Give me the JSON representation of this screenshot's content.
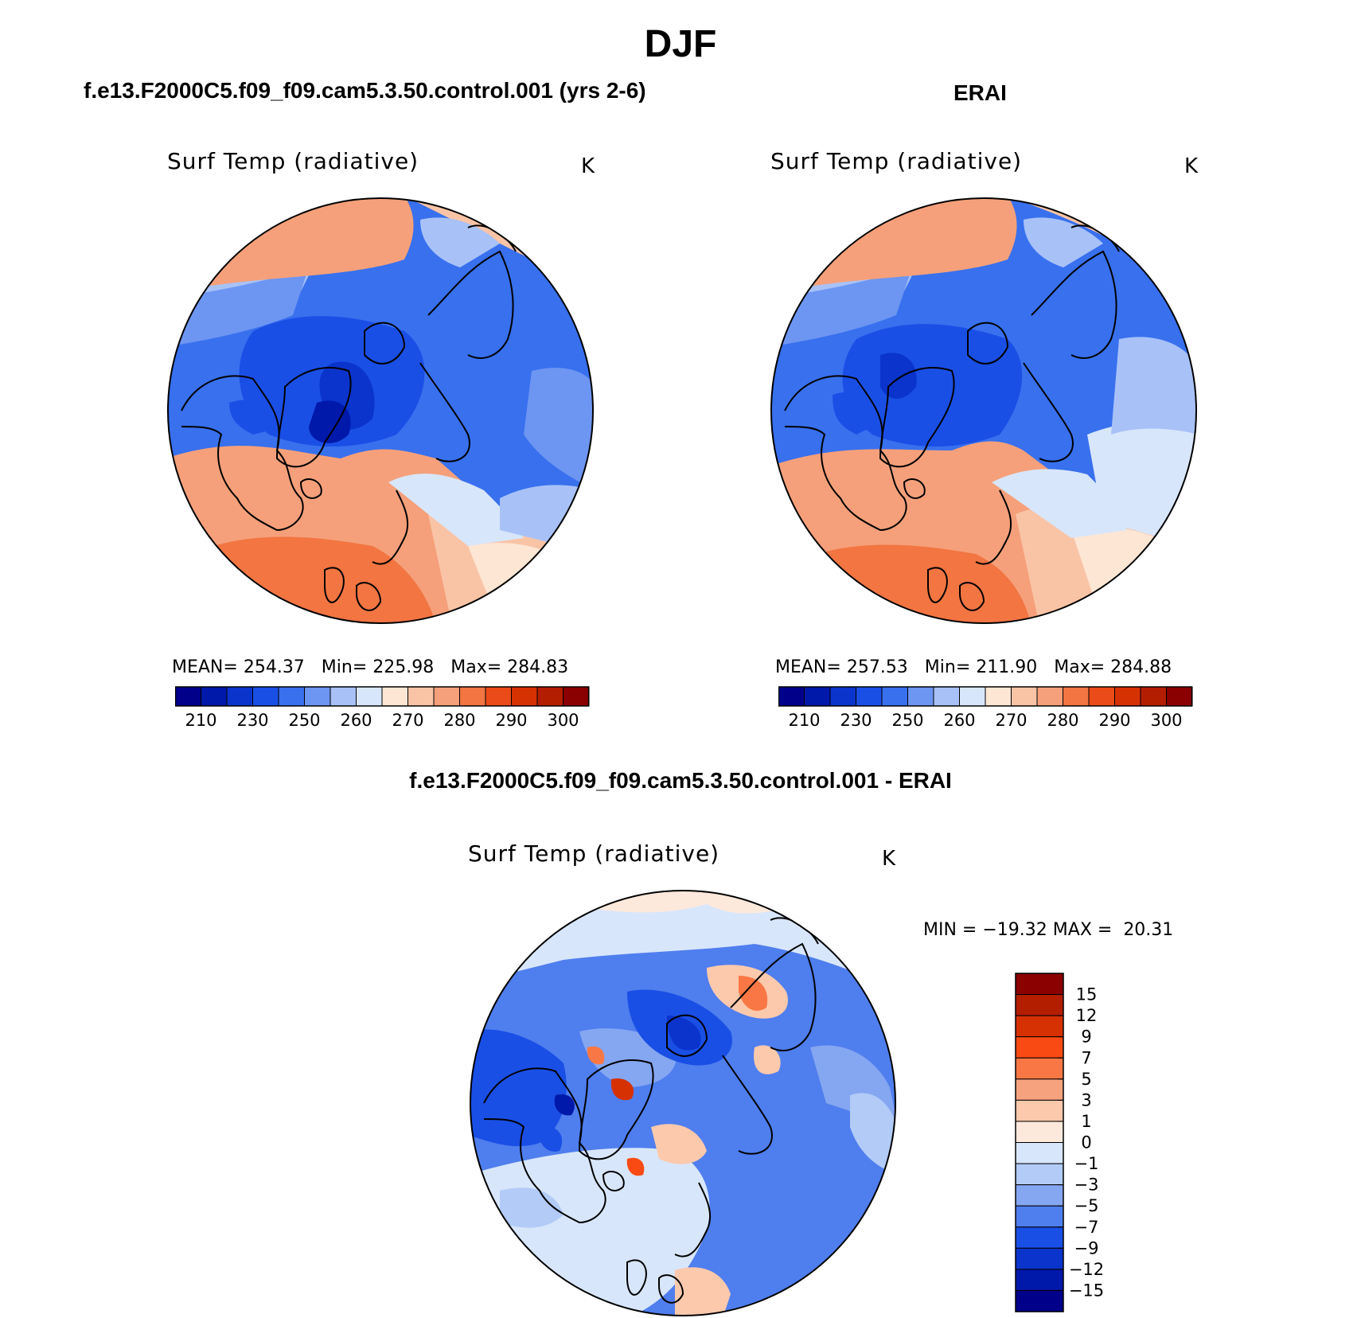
{
  "figure": {
    "title": "DJF",
    "left_case": "f.e13.F2000C5.f09_f09.cam5.3.50.control.001 (yrs 2-6)",
    "right_case": "ERAI",
    "diff_case": "f.e13.F2000C5.f09_f09.cam5.3.50.control.001 - ERAI"
  },
  "chart_data": [
    {
      "type": "heatmap",
      "projection": "north polar stereographic",
      "title": "Surf Temp (radiative)",
      "units": "K",
      "stats": {
        "mean_label": "MEAN=",
        "mean": "254.37",
        "min_label": "Min=",
        "min": "225.98",
        "max_label": "Max=",
        "max": "284.83"
      },
      "colorbar": {
        "orientation": "horizontal",
        "levels": [
          "210",
          "230",
          "250",
          "260",
          "270",
          "280",
          "290",
          "300"
        ],
        "colors": [
          "#00008b",
          "#0019aa",
          "#0a34cc",
          "#1a4fe6",
          "#3870ee",
          "#6d95f2",
          "#a8c2f7",
          "#d8e6fb",
          "#fde6d4",
          "#f9c4a6",
          "#f5a07a",
          "#f27542",
          "#eb4b18",
          "#d63103",
          "#b41e00",
          "#8b0000"
        ]
      }
    },
    {
      "type": "heatmap",
      "projection": "north polar stereographic",
      "title": "Surf Temp (radiative)",
      "units": "K",
      "stats": {
        "mean_label": "MEAN=",
        "mean": "257.53",
        "min_label": "Min=",
        "min": "211.90",
        "max_label": "Max=",
        "max": "284.88"
      },
      "colorbar": {
        "orientation": "horizontal",
        "levels": [
          "210",
          "230",
          "250",
          "260",
          "270",
          "280",
          "290",
          "300"
        ],
        "colors": [
          "#00008b",
          "#0019aa",
          "#0a34cc",
          "#1a4fe6",
          "#3870ee",
          "#6d95f2",
          "#a8c2f7",
          "#d8e6fb",
          "#fde6d4",
          "#f9c4a6",
          "#f5a07a",
          "#f27542",
          "#eb4b18",
          "#d63103",
          "#b41e00",
          "#8b0000"
        ]
      }
    },
    {
      "type": "heatmap",
      "projection": "north polar stereographic",
      "title": "Surf Temp (radiative)",
      "units": "K",
      "stats": {
        "min_label": "MIN =",
        "min": "−19.32",
        "max_label": "MAX =",
        "max": "20.31"
      },
      "colorbar": {
        "orientation": "vertical",
        "levels": [
          "15",
          "12",
          "9",
          "7",
          "5",
          "3",
          "1",
          "0",
          "−1",
          "−3",
          "−5",
          "−7",
          "−9",
          "−12",
          "−15"
        ],
        "colors": [
          "#8b0000",
          "#b41e00",
          "#d63103",
          "#fa4a14",
          "#f97744",
          "#f7a27f",
          "#fcc9ad",
          "#fde9dc",
          "#d8e6fb",
          "#b2cbf7",
          "#85a6f1",
          "#4f7eee",
          "#1a4fe6",
          "#0a34cc",
          "#0019aa",
          "#00008b"
        ]
      }
    }
  ]
}
